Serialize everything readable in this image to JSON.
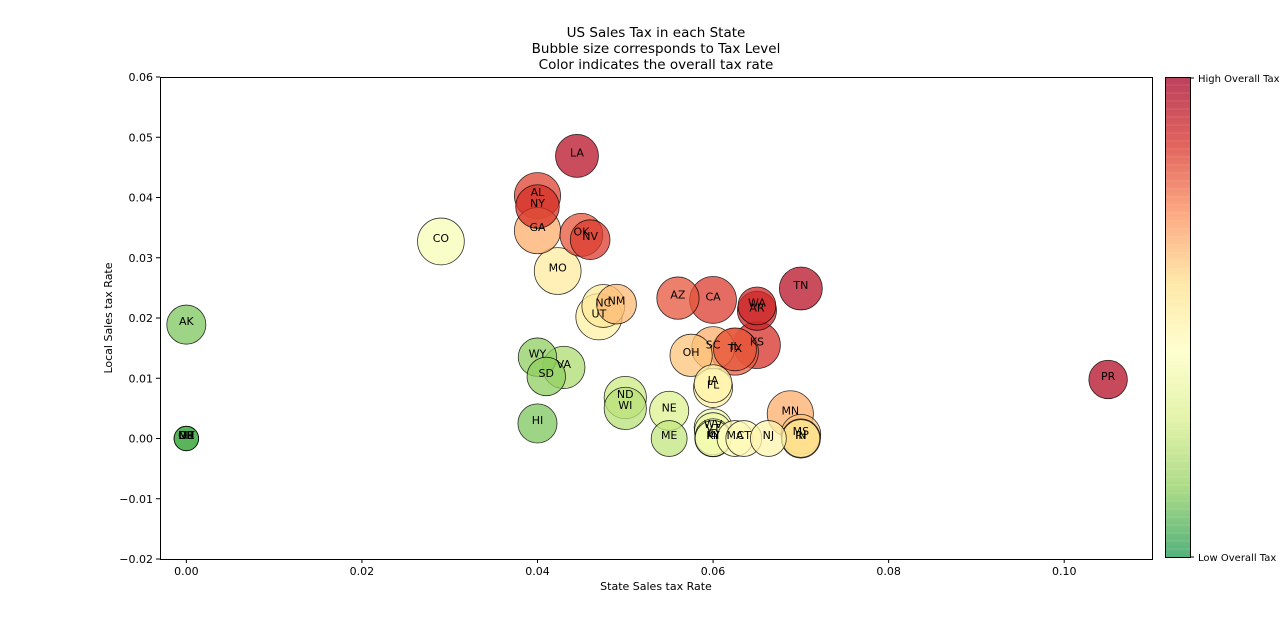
{
  "chart_data": {
    "type": "scatter",
    "title": "US Sales Tax in each State",
    "subtitle": "Bubble size corresponds to Tax Level",
    "subtitle2": "Color indicates the overall tax rate",
    "xlabel": "State Sales tax Rate",
    "ylabel": "Local Sales tax Rate",
    "xlim": [
      -0.003,
      0.11
    ],
    "ylim": [
      -0.02,
      0.06
    ],
    "xticks": [
      "0.00",
      "0.02",
      "0.04",
      "0.06",
      "0.08",
      "0.10"
    ],
    "yticks": [
      "-0.02",
      "-0.01",
      "0.00",
      "0.01",
      "0.02",
      "0.03",
      "0.04",
      "0.05",
      "0.06"
    ],
    "colorbar": {
      "high_label": "High Overall Tax",
      "low_label": "Low Overall Tax",
      "colors": [
        "#1a9850",
        "#91cf60",
        "#d9ef8b",
        "#ffffbf",
        "#fee08b",
        "#fc8d59",
        "#d73027",
        "#a50026"
      ]
    },
    "points": [
      {
        "label": "LA",
        "x": 0.0445,
        "y": 0.0469,
        "rank": 0.95,
        "size": 0.78
      },
      {
        "label": "AL",
        "x": 0.04,
        "y": 0.0403,
        "rank": 0.83,
        "size": 0.88
      },
      {
        "label": "NY",
        "x": 0.04,
        "y": 0.0385,
        "rank": 0.86,
        "size": 0.8
      },
      {
        "label": "GA",
        "x": 0.04,
        "y": 0.0345,
        "rank": 0.66,
        "size": 0.88
      },
      {
        "label": "OK",
        "x": 0.045,
        "y": 0.0338,
        "rank": 0.8,
        "size": 0.78
      },
      {
        "label": "NV",
        "x": 0.046,
        "y": 0.033,
        "rank": 0.84,
        "size": 0.68
      },
      {
        "label": "CO",
        "x": 0.029,
        "y": 0.0327,
        "rank": 0.4,
        "size": 0.9
      },
      {
        "label": "MO",
        "x": 0.0423,
        "y": 0.0278,
        "rank": 0.52,
        "size": 0.9
      },
      {
        "label": "TN",
        "x": 0.07,
        "y": 0.0249,
        "rank": 0.95,
        "size": 0.78
      },
      {
        "label": "AZ",
        "x": 0.056,
        "y": 0.0233,
        "rank": 0.8,
        "size": 0.76
      },
      {
        "label": "CA",
        "x": 0.06,
        "y": 0.023,
        "rank": 0.84,
        "size": 0.9
      },
      {
        "label": "WA",
        "x": 0.065,
        "y": 0.022,
        "rank": 0.88,
        "size": 0.62
      },
      {
        "label": "AR",
        "x": 0.065,
        "y": 0.0212,
        "rank": 0.9,
        "size": 0.66
      },
      {
        "label": "NC",
        "x": 0.0475,
        "y": 0.022,
        "rank": 0.53,
        "size": 0.78
      },
      {
        "label": "NM",
        "x": 0.049,
        "y": 0.0223,
        "rank": 0.64,
        "size": 0.68
      },
      {
        "label": "UT",
        "x": 0.047,
        "y": 0.0202,
        "rank": 0.5,
        "size": 0.88
      },
      {
        "label": "AK",
        "x": 0.0,
        "y": 0.0189,
        "rank": 0.12,
        "size": 0.66
      },
      {
        "label": "SC",
        "x": 0.06,
        "y": 0.015,
        "rank": 0.66,
        "size": 0.78
      },
      {
        "label": "KS",
        "x": 0.065,
        "y": 0.0155,
        "rank": 0.86,
        "size": 0.9
      },
      {
        "label": "TX",
        "x": 0.0625,
        "y": 0.0144,
        "rank": 0.78,
        "size": 0.9
      },
      {
        "label": "IL",
        "x": 0.0625,
        "y": 0.0148,
        "rank": 0.8,
        "size": 0.78
      },
      {
        "label": "OH",
        "x": 0.0575,
        "y": 0.0138,
        "rank": 0.62,
        "size": 0.76
      },
      {
        "label": "WY",
        "x": 0.04,
        "y": 0.0135,
        "rank": 0.14,
        "size": 0.64
      },
      {
        "label": "VA",
        "x": 0.043,
        "y": 0.0118,
        "rank": 0.2,
        "size": 0.76
      },
      {
        "label": "SD",
        "x": 0.041,
        "y": 0.0103,
        "rank": 0.14,
        "size": 0.64
      },
      {
        "label": "IA",
        "x": 0.06,
        "y": 0.0091,
        "rank": 0.48,
        "size": 0.62
      },
      {
        "label": "FL",
        "x": 0.06,
        "y": 0.0084,
        "rank": 0.5,
        "size": 0.66
      },
      {
        "label": "PR",
        "x": 0.105,
        "y": 0.0098,
        "rank": 0.96,
        "size": 0.64
      },
      {
        "label": "ND",
        "x": 0.05,
        "y": 0.0068,
        "rank": 0.26,
        "size": 0.76
      },
      {
        "label": "WI",
        "x": 0.05,
        "y": 0.005,
        "rank": 0.22,
        "size": 0.76
      },
      {
        "label": "NE",
        "x": 0.055,
        "y": 0.0046,
        "rank": 0.3,
        "size": 0.66
      },
      {
        "label": "MN",
        "x": 0.0688,
        "y": 0.0041,
        "rank": 0.66,
        "size": 0.88
      },
      {
        "label": "HI",
        "x": 0.04,
        "y": 0.0025,
        "rank": 0.12,
        "size": 0.66
      },
      {
        "label": "WV",
        "x": 0.06,
        "y": 0.0018,
        "rank": 0.38,
        "size": 0.62
      },
      {
        "label": "VT",
        "x": 0.06,
        "y": 0.0012,
        "rank": 0.36,
        "size": 0.6
      },
      {
        "label": "MI",
        "x": 0.06,
        "y": 0.0,
        "rank": 0.3,
        "size": 0.58
      },
      {
        "label": "ID",
        "x": 0.06,
        "y": 0.0003,
        "rank": 0.34,
        "size": 0.56
      },
      {
        "label": "KY",
        "x": 0.06,
        "y": 0.0,
        "rank": 0.4,
        "size": 0.56
      },
      {
        "label": "MS",
        "x": 0.07,
        "y": 0.0007,
        "rank": 0.62,
        "size": 0.68
      },
      {
        "label": "IN",
        "x": 0.07,
        "y": 0.0,
        "rank": 0.58,
        "size": 0.66
      },
      {
        "label": "RI",
        "x": 0.07,
        "y": 0.0,
        "rank": 0.56,
        "size": 0.62
      },
      {
        "label": "MA",
        "x": 0.0625,
        "y": 0.0,
        "rank": 0.44,
        "size": 0.56
      },
      {
        "label": "CT",
        "x": 0.0635,
        "y": 0.0,
        "rank": 0.46,
        "size": 0.56
      },
      {
        "label": "NJ",
        "x": 0.0663,
        "y": 0.0,
        "rank": 0.48,
        "size": 0.56
      },
      {
        "label": "ME",
        "x": 0.055,
        "y": 0.0,
        "rank": 0.24,
        "size": 0.56
      },
      {
        "label": "DE",
        "x": 0.0,
        "y": 0.0,
        "rank": 0.02,
        "size": 0.2
      },
      {
        "label": "MT",
        "x": 0.0,
        "y": 0.0,
        "rank": 0.04,
        "size": 0.2
      },
      {
        "label": "NH",
        "x": 0.0,
        "y": 0.0,
        "rank": 0.06,
        "size": 0.2
      },
      {
        "label": "OR",
        "x": 0.0,
        "y": 0.0,
        "rank": 0.08,
        "size": 0.2
      }
    ]
  }
}
